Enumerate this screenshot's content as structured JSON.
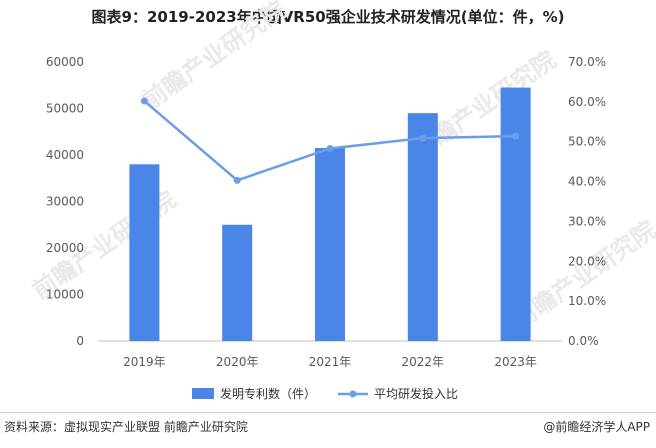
{
  "title": "图表9：2019-2023年中国VR50强企业技术研发情况(单位：件，%)",
  "watermark": "前瞻产业研究院",
  "source": "资料来源：虚拟现实产业联盟 前瞻产业研究院",
  "credit": "@前瞻经济学人APP",
  "colors": {
    "bar": "#4a86e8",
    "line": "#6b9de8",
    "axis": "#bfbfbf",
    "text": "#595959"
  },
  "chart_data": {
    "type": "bar",
    "categories": [
      "2019年",
      "2020年",
      "2021年",
      "2022年",
      "2023年"
    ],
    "y_left_ticks": [
      "0",
      "10000",
      "20000",
      "30000",
      "40000",
      "50000",
      "60000"
    ],
    "y_right_ticks": [
      "0.0%",
      "10.0%",
      "20.0%",
      "30.0%",
      "40.0%",
      "50.0%",
      "60.0%",
      "70.0%"
    ],
    "ylim": [
      0,
      60000
    ],
    "y2lim": [
      0,
      70
    ],
    "series": [
      {
        "name": "发明专利数（件）",
        "kind": "bar",
        "axis": "left",
        "values": [
          38000,
          25000,
          41500,
          49000,
          54500
        ]
      },
      {
        "name": "平均研发投入比",
        "kind": "line",
        "axis": "right",
        "values": [
          60.2,
          40.3,
          48.3,
          50.9,
          51.4
        ]
      }
    ],
    "legend": "bottom"
  }
}
